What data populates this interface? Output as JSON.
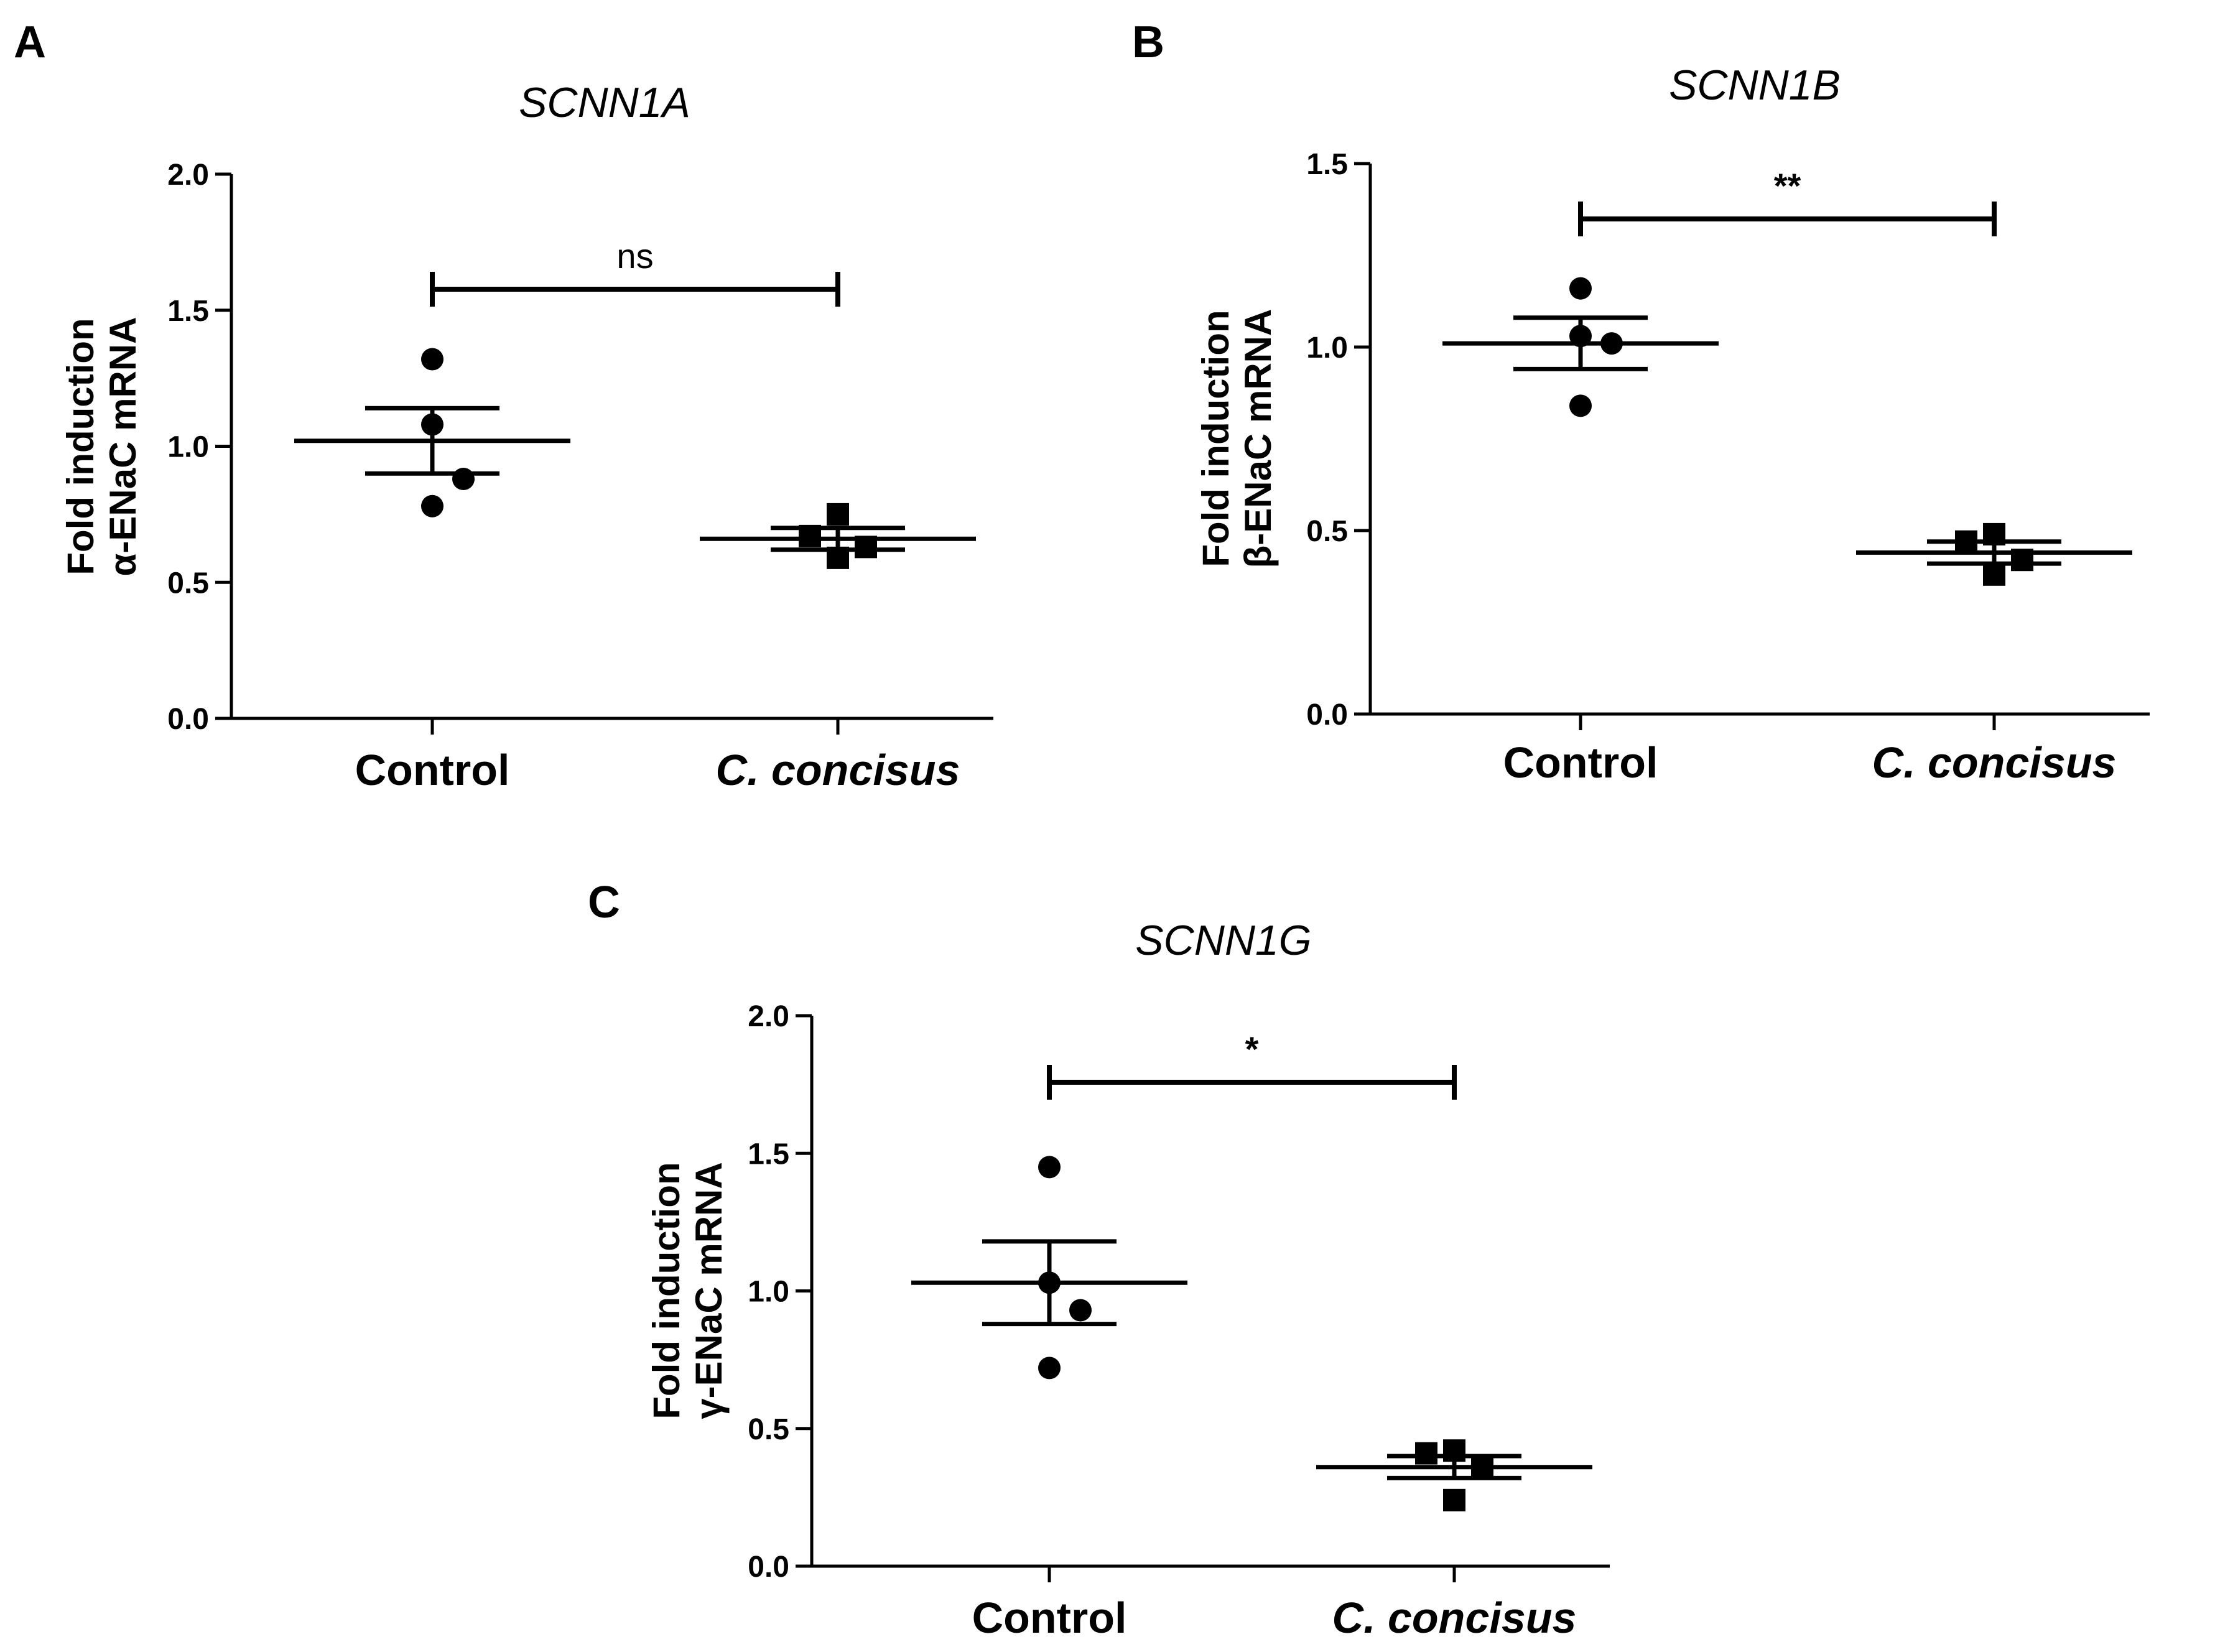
{
  "chart_data": [
    {
      "type": "scatter",
      "panel_label": "A",
      "title": "SCNN1A",
      "ylabel": [
        "Fold induction",
        "α-ENaC mRNA"
      ],
      "categories": [
        "Control",
        "C. concisus"
      ],
      "ylim": [
        0,
        2.0
      ],
      "yticks": [
        "0.0",
        "0.5",
        "1.0",
        "1.5",
        "2.0"
      ],
      "series": [
        {
          "name": "Control",
          "marker": "circle",
          "values": [
            1.32,
            1.08,
            0.88,
            0.78
          ],
          "mean": 1.02,
          "sem": 0.12
        },
        {
          "name": "C. concisus",
          "marker": "square",
          "values": [
            0.75,
            0.67,
            0.63,
            0.59
          ],
          "mean": 0.66,
          "sem": 0.04
        }
      ],
      "significance": "ns"
    },
    {
      "type": "scatter",
      "panel_label": "B",
      "title": "SCNN1B",
      "ylabel": [
        "Fold induction",
        "β-ENaC mRNA"
      ],
      "categories": [
        "Control",
        "C. concisus"
      ],
      "ylim": [
        0,
        1.5
      ],
      "yticks": [
        "0.0",
        "0.5",
        "1.0",
        "1.5"
      ],
      "series": [
        {
          "name": "Control",
          "marker": "circle",
          "values": [
            1.16,
            1.03,
            1.01,
            0.84
          ],
          "mean": 1.01,
          "sem": 0.07
        },
        {
          "name": "C. concisus",
          "marker": "square",
          "values": [
            0.49,
            0.47,
            0.42,
            0.38
          ],
          "mean": 0.44,
          "sem": 0.03
        }
      ],
      "significance": "**"
    },
    {
      "type": "scatter",
      "panel_label": "C",
      "title": "SCNN1G",
      "ylabel": [
        "Fold induction",
        "γ-ENaC mRNA"
      ],
      "categories": [
        "Control",
        "C. concisus"
      ],
      "ylim": [
        0,
        2.0
      ],
      "yticks": [
        "0.0",
        "0.5",
        "1.0",
        "1.5",
        "2.0"
      ],
      "series": [
        {
          "name": "Control",
          "marker": "circle",
          "values": [
            1.45,
            1.03,
            0.93,
            0.72
          ],
          "mean": 1.03,
          "sem": 0.15
        },
        {
          "name": "C. concisus",
          "marker": "square",
          "values": [
            0.42,
            0.41,
            0.36,
            0.24
          ],
          "mean": 0.36,
          "sem": 0.04
        }
      ],
      "significance": "*"
    }
  ]
}
